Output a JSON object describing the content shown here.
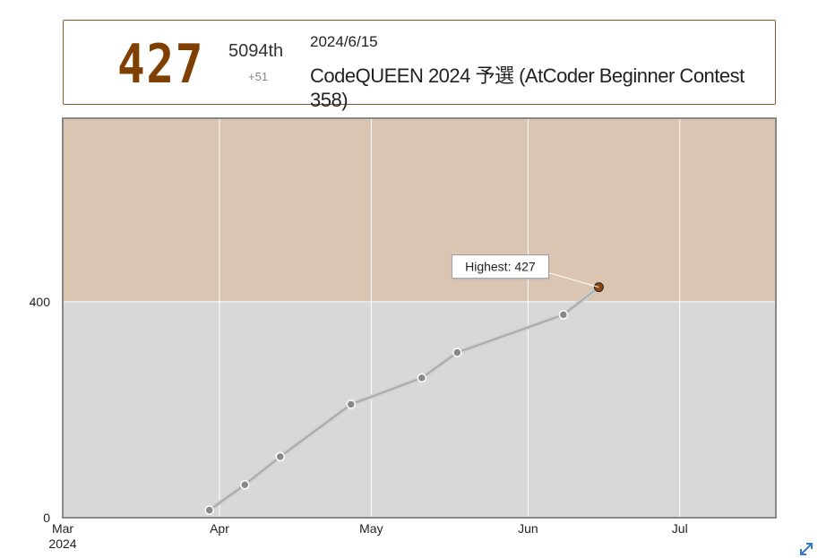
{
  "status": {
    "rating": "427",
    "rank": "5094th",
    "diff": "+51",
    "date": "2024/6/15",
    "contest": "CodeQUEEN 2024 予選 (AtCoder Beginner Contest 358)"
  },
  "chart_data": {
    "type": "line",
    "x_type": "date",
    "xlim": [
      "2024-03-01",
      "2024-07-20"
    ],
    "ylim": [
      0,
      740
    ],
    "xticks": [
      {
        "date": "2024-03-01",
        "label": "Mar",
        "sublabel": "2024"
      },
      {
        "date": "2024-04-01",
        "label": "Apr"
      },
      {
        "date": "2024-05-01",
        "label": "May"
      },
      {
        "date": "2024-06-01",
        "label": "Jun"
      },
      {
        "date": "2024-07-01",
        "label": "Jul"
      }
    ],
    "yticks": [
      0,
      400
    ],
    "bands": [
      {
        "from": 0,
        "to": 400,
        "color": "#d8d8d8"
      },
      {
        "from": 400,
        "to": 740,
        "color": "#d9c5b2"
      }
    ],
    "series": [
      {
        "points": [
          {
            "date": "2024-03-30",
            "value": 14
          },
          {
            "date": "2024-04-06",
            "value": 61
          },
          {
            "date": "2024-04-13",
            "value": 113
          },
          {
            "date": "2024-04-27",
            "value": 210
          },
          {
            "date": "2024-05-11",
            "value": 259
          },
          {
            "date": "2024-05-18",
            "value": 306
          },
          {
            "date": "2024-06-08",
            "value": 376
          },
          {
            "date": "2024-06-15",
            "value": 427
          }
        ]
      }
    ],
    "highlight": {
      "index": 7,
      "label": "Highest: 427"
    },
    "colors": {
      "line": "#aaaaaa",
      "point": "#888888",
      "highlight": "#8b4513",
      "grid": "#ffffff",
      "frame": "#888888"
    }
  }
}
